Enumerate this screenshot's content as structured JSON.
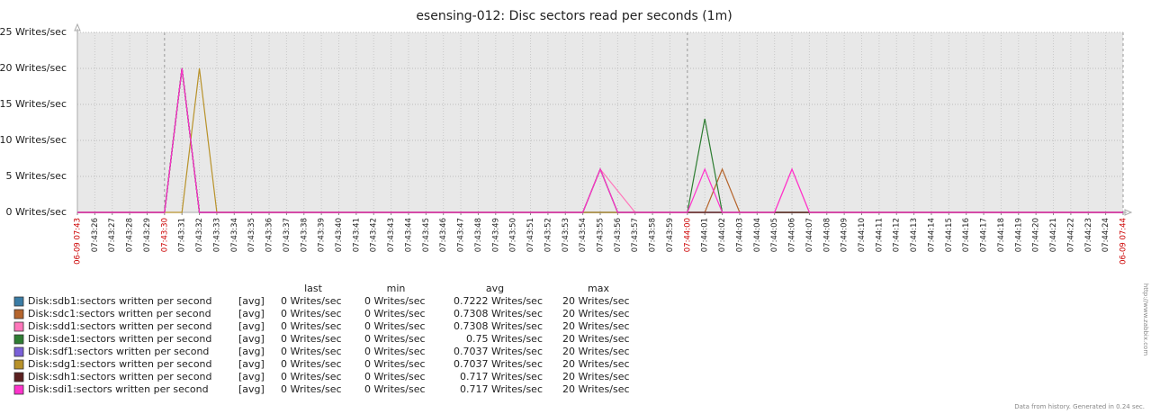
{
  "chart_data": {
    "type": "line",
    "title": "esensing-012: Disc sectors read per seconds (1m)",
    "categories": [
      "06-09 07:43",
      "07:43:26",
      "07:43:27",
      "07:43:28",
      "07:43:29",
      "07:43:30",
      "07:43:31",
      "07:43:32",
      "07:43:33",
      "07:43:34",
      "07:43:35",
      "07:43:36",
      "07:43:37",
      "07:43:38",
      "07:43:39",
      "07:43:40",
      "07:43:41",
      "07:43:42",
      "07:43:43",
      "07:43:44",
      "07:43:45",
      "07:43:46",
      "07:43:47",
      "07:43:48",
      "07:43:49",
      "07:43:50",
      "07:43:51",
      "07:43:52",
      "07:43:53",
      "07:43:54",
      "07:43:55",
      "07:43:56",
      "07:43:57",
      "07:43:58",
      "07:43:59",
      "07:44:00",
      "07:44:01",
      "07:44:02",
      "07:44:03",
      "07:44:04",
      "07:44:05",
      "07:44:06",
      "07:44:07",
      "07:44:08",
      "07:44:09",
      "07:44:10",
      "07:44:11",
      "07:44:12",
      "07:44:13",
      "07:44:14",
      "07:44:15",
      "07:44:16",
      "07:44:17",
      "07:44:18",
      "07:44:19",
      "07:44:20",
      "07:44:21",
      "07:44:22",
      "07:44:23",
      "07:44:24",
      "06-09 07:44"
    ],
    "highlight_label_indices": [
      0,
      5,
      35,
      60
    ],
    "highlight_color": "#cc0000",
    "ylim": [
      0,
      25
    ],
    "yticks": [
      {
        "value": 0,
        "label": "0 Writes/sec"
      },
      {
        "value": 5,
        "label": "5 Writes/sec"
      },
      {
        "value": 10,
        "label": "10 Writes/sec"
      },
      {
        "value": 15,
        "label": "15 Writes/sec"
      },
      {
        "value": 20,
        "label": "20 Writes/sec"
      },
      {
        "value": 25,
        "label": "25 Writes/sec"
      }
    ],
    "grid": true,
    "series": [
      {
        "name": "Disk:sdb1:sectors written per second",
        "color": "#3a7ca5",
        "values": [
          0,
          0,
          0,
          0,
          0,
          0,
          20,
          0,
          0,
          0,
          0,
          0,
          0,
          0,
          0,
          0,
          0,
          0,
          0,
          0,
          0,
          0,
          0,
          0,
          0,
          0,
          0,
          0,
          0,
          0,
          6,
          0,
          0,
          0,
          0,
          0,
          0,
          0,
          0,
          0,
          0,
          0,
          0,
          0,
          0,
          0,
          0,
          0,
          0,
          0,
          0,
          0,
          0,
          0,
          0,
          0,
          0,
          0,
          0,
          0,
          0
        ]
      },
      {
        "name": "Disk:sdc1:sectors written per second",
        "color": "#b5652d",
        "values": [
          0,
          0,
          0,
          0,
          0,
          0,
          20,
          0,
          0,
          0,
          0,
          0,
          0,
          0,
          0,
          0,
          0,
          0,
          0,
          0,
          0,
          0,
          0,
          0,
          0,
          0,
          0,
          0,
          0,
          0,
          0,
          0,
          0,
          0,
          0,
          0,
          0,
          6,
          0,
          0,
          0,
          0,
          0,
          0,
          0,
          0,
          0,
          0,
          0,
          0,
          0,
          0,
          0,
          0,
          0,
          0,
          0,
          0,
          0,
          0,
          0
        ]
      },
      {
        "name": "Disk:sdd1:sectors written per second",
        "color": "#ff77bb",
        "values": [
          0,
          0,
          0,
          0,
          0,
          0,
          20,
          0,
          0,
          0,
          0,
          0,
          0,
          0,
          0,
          0,
          0,
          0,
          0,
          0,
          0,
          0,
          0,
          0,
          0,
          0,
          0,
          0,
          0,
          0,
          6,
          3,
          0,
          0,
          0,
          0,
          0,
          0,
          0,
          0,
          0,
          6,
          0,
          0,
          0,
          0,
          0,
          0,
          0,
          0,
          0,
          0,
          0,
          0,
          0,
          0,
          0,
          0,
          0,
          0,
          0
        ]
      },
      {
        "name": "Disk:sde1:sectors written per second",
        "color": "#2e7d32",
        "values": [
          0,
          0,
          0,
          0,
          0,
          0,
          20,
          0,
          0,
          0,
          0,
          0,
          0,
          0,
          0,
          0,
          0,
          0,
          0,
          0,
          0,
          0,
          0,
          0,
          0,
          0,
          0,
          0,
          0,
          0,
          0,
          0,
          0,
          0,
          0,
          0,
          13,
          0,
          0,
          0,
          0,
          0,
          0,
          0,
          0,
          0,
          0,
          0,
          0,
          0,
          0,
          0,
          0,
          0,
          0,
          0,
          0,
          0,
          0,
          0,
          0
        ]
      },
      {
        "name": "Disk:sdf1:sectors written per second",
        "color": "#7a60d8",
        "values": [
          0,
          0,
          0,
          0,
          0,
          0,
          20,
          0,
          0,
          0,
          0,
          0,
          0,
          0,
          0,
          0,
          0,
          0,
          0,
          0,
          0,
          0,
          0,
          0,
          0,
          0,
          0,
          0,
          0,
          0,
          0,
          0,
          0,
          0,
          0,
          0,
          0,
          0,
          0,
          0,
          0,
          0,
          0,
          0,
          0,
          0,
          0,
          0,
          0,
          0,
          0,
          0,
          0,
          0,
          0,
          0,
          0,
          0,
          0,
          0,
          0
        ]
      },
      {
        "name": "Disk:sdg1:sectors written per second",
        "color": "#b8922a",
        "values": [
          0,
          0,
          0,
          0,
          0,
          0,
          0,
          20,
          0,
          0,
          0,
          0,
          0,
          0,
          0,
          0,
          0,
          0,
          0,
          0,
          0,
          0,
          0,
          0,
          0,
          0,
          0,
          0,
          0,
          0,
          0,
          0,
          0,
          0,
          0,
          0,
          0,
          0,
          0,
          0,
          0,
          0,
          0,
          0,
          0,
          0,
          0,
          0,
          0,
          0,
          0,
          0,
          0,
          0,
          0,
          0,
          0,
          0,
          0,
          0,
          0
        ]
      },
      {
        "name": "Disk:sdh1:sectors written per second",
        "color": "#5a1f1f",
        "values": [
          0,
          0,
          0,
          0,
          0,
          0,
          20,
          0,
          0,
          0,
          0,
          0,
          0,
          0,
          0,
          0,
          0,
          0,
          0,
          0,
          0,
          0,
          0,
          0,
          0,
          0,
          0,
          0,
          0,
          0,
          6,
          0,
          0,
          0,
          0,
          0,
          0,
          0,
          0,
          0,
          0,
          0,
          0,
          0,
          0,
          0,
          0,
          0,
          0,
          0,
          0,
          0,
          0,
          0,
          0,
          0,
          0,
          0,
          0,
          0,
          0
        ]
      },
      {
        "name": "Disk:sdi1:sectors written per second",
        "color": "#ff33cc",
        "values": [
          0,
          0,
          0,
          0,
          0,
          0,
          20,
          0,
          0,
          0,
          0,
          0,
          0,
          0,
          0,
          0,
          0,
          0,
          0,
          0,
          0,
          0,
          0,
          0,
          0,
          0,
          0,
          0,
          0,
          0,
          6,
          0,
          0,
          0,
          0,
          0,
          6,
          0,
          0,
          0,
          0,
          6,
          0,
          0,
          0,
          0,
          0,
          0,
          0,
          0,
          0,
          0,
          0,
          0,
          0,
          0,
          0,
          0,
          0,
          0,
          0
        ]
      }
    ],
    "legend": {
      "columns": [
        "last",
        "min",
        "avg",
        "max"
      ],
      "rows": [
        {
          "func": "[avg]",
          "last": "0 Writes/sec",
          "min": "0 Writes/sec",
          "avg": "0.7222 Writes/sec",
          "max": "20 Writes/sec"
        },
        {
          "func": "[avg]",
          "last": "0 Writes/sec",
          "min": "0 Writes/sec",
          "avg": "0.7308 Writes/sec",
          "max": "20 Writes/sec"
        },
        {
          "func": "[avg]",
          "last": "0 Writes/sec",
          "min": "0 Writes/sec",
          "avg": "0.7308 Writes/sec",
          "max": "20 Writes/sec"
        },
        {
          "func": "[avg]",
          "last": "0 Writes/sec",
          "min": "0 Writes/sec",
          "avg": "0.75 Writes/sec",
          "max": "20 Writes/sec"
        },
        {
          "func": "[avg]",
          "last": "0 Writes/sec",
          "min": "0 Writes/sec",
          "avg": "0.7037 Writes/sec",
          "max": "20 Writes/sec"
        },
        {
          "func": "[avg]",
          "last": "0 Writes/sec",
          "min": "0 Writes/sec",
          "avg": "0.7037 Writes/sec",
          "max": "20 Writes/sec"
        },
        {
          "func": "[avg]",
          "last": "0 Writes/sec",
          "min": "0 Writes/sec",
          "avg": "0.717 Writes/sec",
          "max": "20 Writes/sec"
        },
        {
          "func": "[avg]",
          "last": "0 Writes/sec",
          "min": "0 Writes/sec",
          "avg": "0.717 Writes/sec",
          "max": "20 Writes/sec"
        }
      ]
    },
    "footer": "Data from history. Generated in 0.24 sec.",
    "side_note": "http://www.zabbix.com"
  }
}
